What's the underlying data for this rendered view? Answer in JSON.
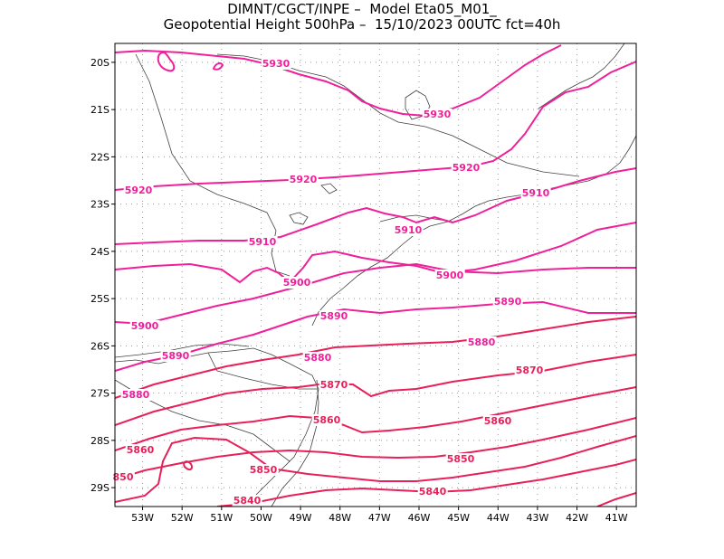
{
  "title": {
    "line1": "DIMNT/CGCT/INPE –  Model Eta05_M01_",
    "line2": "Geopotential Height 500hPa –  15/10/2023 00UTC fct=40h"
  },
  "axes": {
    "lat_labels": [
      "20S",
      "21S",
      "22S",
      "23S",
      "24S",
      "25S",
      "26S",
      "27S",
      "28S",
      "29S"
    ],
    "lon_labels": [
      "53W",
      "52W",
      "51W",
      "50W",
      "49W",
      "48W",
      "47W",
      "46W",
      "45W",
      "44W",
      "43W",
      "42W",
      "41W"
    ],
    "lon_range": [
      -53.7,
      -40.5
    ],
    "lat_range": [
      -19.6,
      -29.4
    ],
    "grid": true
  },
  "colors": {
    "contour_high": "#f0209a",
    "contour_low": "#e8205a",
    "coast": "#404040"
  },
  "contours": [
    {
      "value": 5930,
      "label": "5930"
    },
    {
      "value": 5920,
      "label": "5920"
    },
    {
      "value": 5910,
      "label": "5910"
    },
    {
      "value": 5900,
      "label": "5900"
    },
    {
      "value": 5890,
      "label": "5890"
    },
    {
      "value": 5880,
      "label": "5880"
    },
    {
      "value": 5870,
      "label": "5870"
    },
    {
      "value": 5860,
      "label": "5860"
    },
    {
      "value": 5850,
      "label": "5850"
    },
    {
      "value": 5840,
      "label": "5840"
    }
  ],
  "contour_labels": [
    {
      "text": "5930"
    },
    {
      "text": "5930"
    },
    {
      "text": "5920"
    },
    {
      "text": "5920"
    },
    {
      "text": "5920"
    },
    {
      "text": "5910"
    },
    {
      "text": "5910"
    },
    {
      "text": "5910"
    },
    {
      "text": "5900"
    },
    {
      "text": "5900"
    },
    {
      "text": "5900"
    },
    {
      "text": "5890"
    },
    {
      "text": "5890"
    },
    {
      "text": "5890"
    },
    {
      "text": "5880"
    },
    {
      "text": "5880"
    },
    {
      "text": "5880"
    },
    {
      "text": "5870"
    },
    {
      "text": "5870"
    },
    {
      "text": "5860"
    },
    {
      "text": "5860"
    },
    {
      "text": "5860"
    },
    {
      "text": "5850"
    },
    {
      "text": "5850"
    },
    {
      "text": "850"
    },
    {
      "text": "5840"
    },
    {
      "text": "5840"
    }
  ]
}
